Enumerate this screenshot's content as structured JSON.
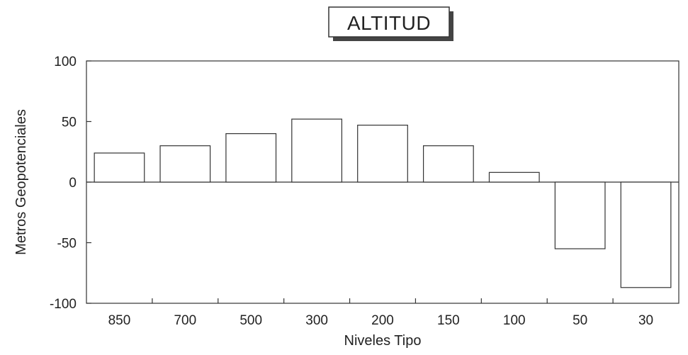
{
  "chart_data": {
    "type": "bar",
    "title": "ALTITUD",
    "xlabel": "Niveles Tipo",
    "ylabel": "Metros Geopotenciales",
    "categories": [
      "850",
      "700",
      "500",
      "300",
      "200",
      "150",
      "100",
      "50",
      "30"
    ],
    "values": [
      24,
      30,
      40,
      52,
      47,
      30,
      8,
      -55,
      -87
    ],
    "ylim": [
      -100,
      100
    ],
    "yticks": [
      -100,
      -50,
      0,
      50,
      100
    ],
    "grid": false,
    "legend": "none",
    "colors": {
      "bar_fill": "#ffffff",
      "bar_stroke": "#333333",
      "axis": "#333333"
    }
  }
}
